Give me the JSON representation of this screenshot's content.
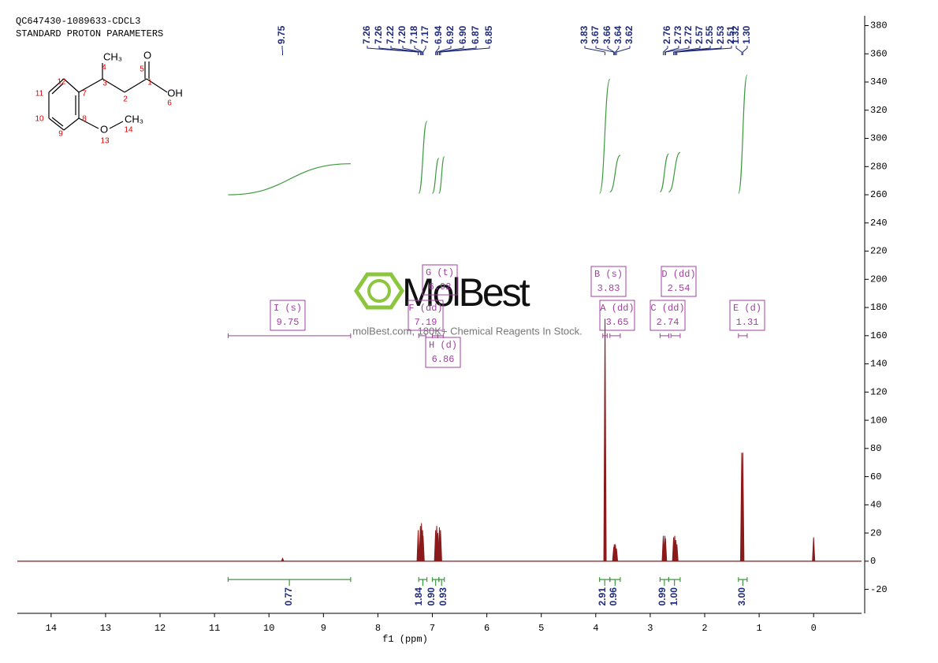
{
  "chart_data": {
    "type": "nmr",
    "title": "QC647430-1089633-CDCL3",
    "subtitle": "STANDARD PROTON PARAMETERS",
    "xlabel": "f1 (ppm)",
    "xlim": [
      14.62,
      -0.88
    ],
    "xticks": [
      14,
      13,
      12,
      11,
      10,
      9,
      8,
      7,
      6,
      5,
      4,
      3,
      2,
      1,
      0
    ],
    "ylim": [
      -37,
      387
    ],
    "yticks": [
      -20,
      0,
      20,
      40,
      60,
      80,
      100,
      120,
      140,
      160,
      180,
      200,
      220,
      240,
      260,
      280,
      300,
      320,
      340,
      360,
      380
    ],
    "spectrum": {
      "color": "#8b1a1a",
      "x": [
        9.75,
        7.26,
        7.22,
        7.2,
        7.18,
        7.17,
        6.94,
        6.92,
        6.9,
        6.87,
        6.85,
        3.83,
        3.67,
        3.66,
        3.64,
        3.62,
        2.76,
        2.73,
        2.72,
        2.57,
        2.55,
        2.53,
        2.51,
        1.32,
        1.3,
        0
      ],
      "values": [
        2,
        22,
        25,
        27,
        22,
        18,
        22,
        25,
        20,
        24,
        22,
        172,
        10,
        12,
        12,
        9,
        18,
        18,
        16,
        17,
        18,
        15,
        12,
        77,
        77,
        17
      ]
    },
    "peak_labels": {
      "color": "#1f2a7a",
      "values": [
        9.75,
        7.26,
        7.26,
        7.22,
        {
          "value": 7.2,
          "label": "7.20"
        },
        7.18,
        7.17,
        6.94,
        6.92,
        {
          "value": 6.9,
          "label": "6.90"
        },
        6.87,
        6.85,
        3.83,
        3.67,
        3.66,
        3.64,
        3.62,
        2.76,
        2.73,
        2.72,
        2.57,
        2.55,
        2.53,
        2.51,
        1.32,
        {
          "value": 1.3,
          "label": "1.30"
        }
      ]
    },
    "integrals": {
      "color": "#3c9a3c",
      "ranges": [
        [
          10.75,
          8.5
        ],
        [
          7.25,
          7.1
        ],
        [
          7.0,
          6.88
        ],
        [
          6.88,
          6.78
        ],
        [
          3.93,
          3.74
        ],
        [
          3.74,
          3.55
        ],
        [
          2.82,
          2.66
        ],
        [
          2.66,
          2.45
        ],
        [
          1.38,
          1.22
        ]
      ],
      "values": [
        0.77,
        1.84,
        0.9,
        0.93,
        2.91,
        0.96,
        0.99,
        1,
        3
      ],
      "value_labels": [
        "0.77",
        "1.84",
        "0.90",
        "0.93",
        "2.91",
        "0.96",
        "0.99",
        "1.00",
        "3.00"
      ],
      "curve_levels": [
        [
          260,
          282
        ],
        [
          261,
          312
        ],
        [
          261,
          286
        ],
        [
          261,
          287
        ],
        [
          261,
          342
        ],
        [
          262,
          288
        ],
        [
          262,
          289
        ],
        [
          262,
          290
        ],
        [
          261,
          345
        ]
      ]
    },
    "multiplets": {
      "color": "#a040a0",
      "items": [
        {
          "label": "I (s)",
          "value": 9.75,
          "range": [
            10.75,
            8.5
          ]
        },
        {
          "label": "F (dd)",
          "value": 7.19,
          "range": [
            7.25,
            7.12
          ]
        },
        {
          "label": "G (t)",
          "value": 6.92,
          "range": [
            7.0,
            6.9
          ]
        },
        {
          "label": "H (d)",
          "value": 6.86,
          "range": [
            6.9,
            6.8
          ]
        },
        {
          "label": "B (s)",
          "value": 3.83,
          "range": [
            3.87,
            3.79
          ]
        },
        {
          "label": "A (dd)",
          "value": 3.65,
          "range": [
            3.74,
            3.55
          ]
        },
        {
          "label": "D (dd)",
          "value": 2.54,
          "range": [
            2.62,
            2.45
          ]
        },
        {
          "label": "C (dd)",
          "value": 2.74,
          "range": [
            2.82,
            2.66
          ]
        },
        {
          "label": "E (d)",
          "value": 1.31,
          "range": [
            1.38,
            1.22
          ]
        }
      ]
    }
  },
  "structure": {
    "atoms": [
      "CH₃",
      "4",
      "3",
      "2",
      "1",
      "5",
      "O",
      "OH",
      "6",
      "12",
      "7",
      "11",
      "10",
      "8",
      "9",
      "O",
      "CH₃",
      "13",
      "14"
    ]
  },
  "watermark": {
    "logo": "MolBest",
    "tagline": "molBest.com, 180K+ Chemical Reagents In Stock."
  }
}
